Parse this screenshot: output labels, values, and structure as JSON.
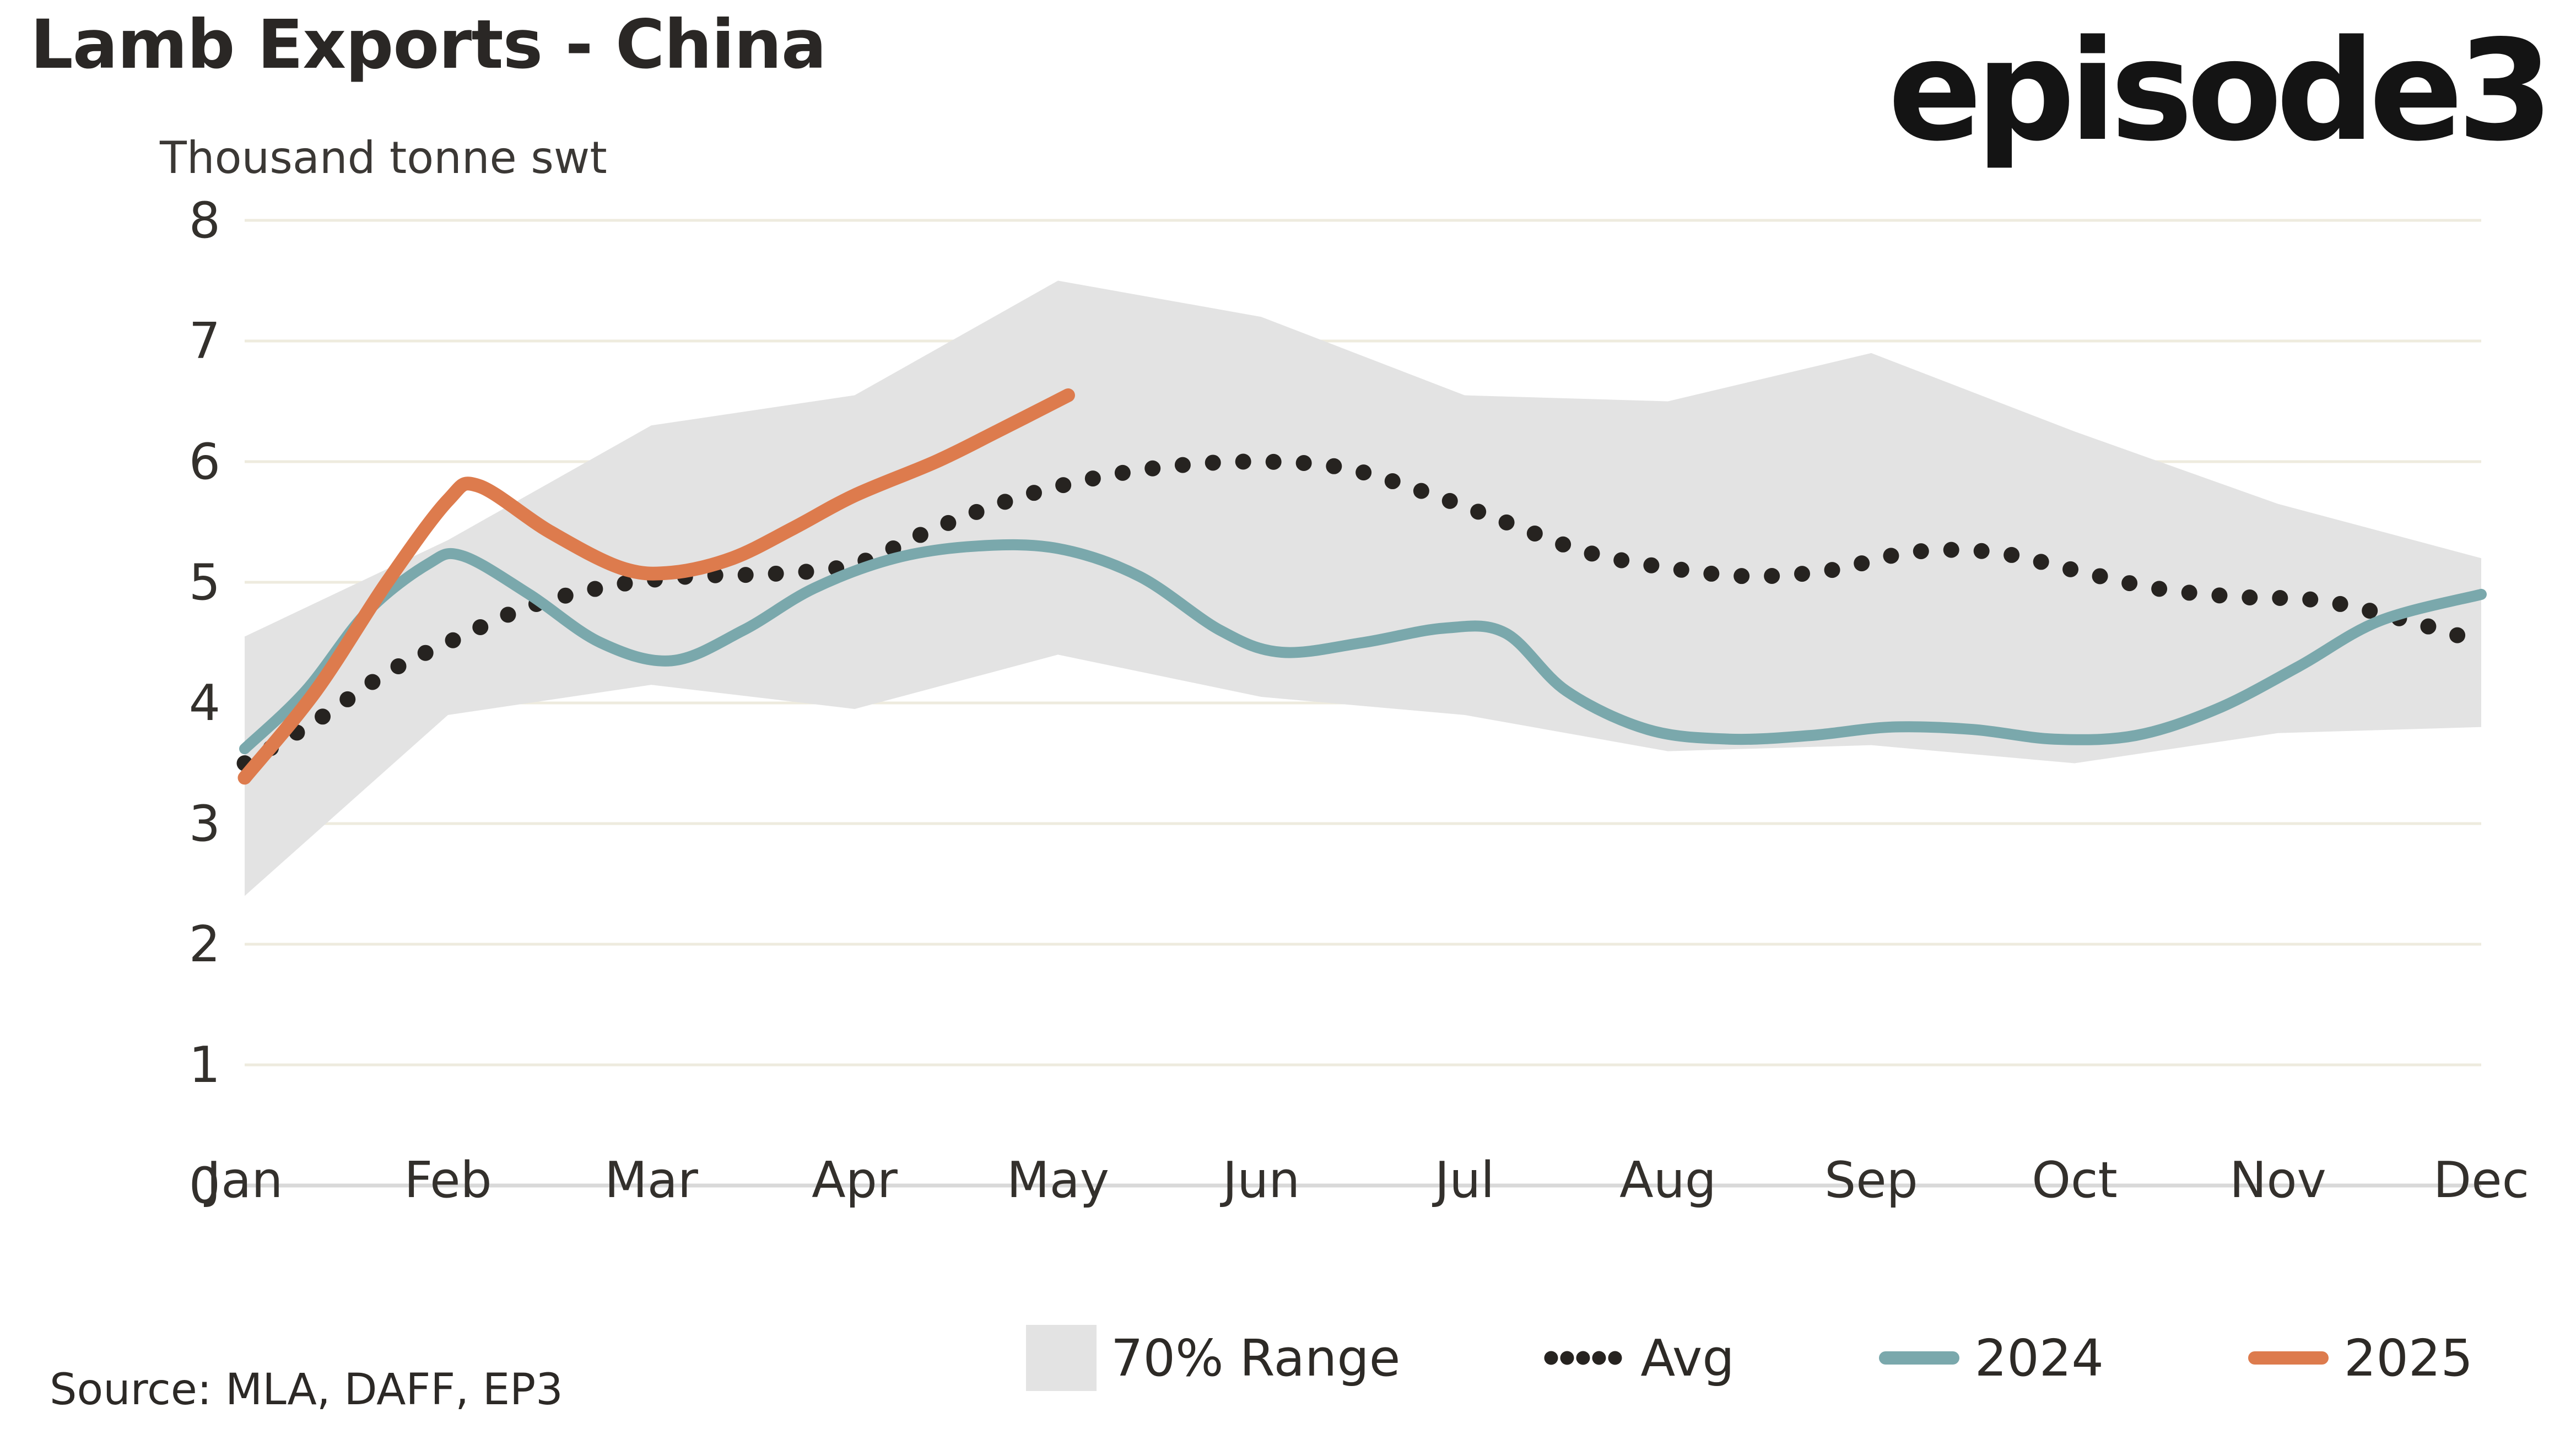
{
  "header": {
    "title": "Lamb Exports - China",
    "subtitle": "Thousand tonne swt",
    "logo_text": "episode3"
  },
  "source_note": "Source: MLA, DAFF, EP3",
  "colors": {
    "band": "#e3e3e3",
    "avg": "#262320",
    "y2024": "#7aa8ac",
    "y2025": "#dd7b4d",
    "gridline": "#eeebde",
    "zero_axis": "#d9d9d9",
    "text": "#33302c"
  },
  "legend": {
    "items": [
      {
        "label": "70% Range",
        "marker": "band-swatch"
      },
      {
        "label": "Avg",
        "marker": "dotted-line-swatch"
      },
      {
        "label": "2024",
        "marker": "teal-line-swatch"
      },
      {
        "label": "2025",
        "marker": "orange-line-swatch"
      }
    ]
  },
  "chart_data": {
    "type": "line",
    "title": "Lamb Exports - China",
    "ylabel": "Thousand tonne swt",
    "xlabel": "",
    "ylim": [
      0,
      8
    ],
    "y_ticks": [
      0,
      1,
      2,
      3,
      4,
      5,
      6,
      7,
      8
    ],
    "categories": [
      "Jan",
      "Feb",
      "Mar",
      "Apr",
      "May",
      "Jun",
      "Jul",
      "Aug",
      "Sep",
      "Oct",
      "Nov",
      "Dec"
    ],
    "grid": "horizontal",
    "legend_position": "bottom",
    "band": {
      "name": "70% Range",
      "x": [
        0,
        1,
        2,
        3,
        4,
        5,
        6,
        7,
        8,
        9,
        10,
        11
      ],
      "lower": [
        2.4,
        3.9,
        4.15,
        3.95,
        4.4,
        4.05,
        3.9,
        3.6,
        3.65,
        3.5,
        3.75,
        3.8
      ],
      "upper": [
        4.55,
        5.35,
        6.3,
        6.55,
        7.5,
        7.2,
        6.55,
        6.5,
        6.9,
        6.25,
        5.65,
        5.2
      ]
    },
    "series": [
      {
        "name": "Avg",
        "style": "dotted",
        "color": "#262320",
        "x": [
          0,
          0.35,
          0.7,
          1.0,
          1.4,
          1.8,
          2.2,
          2.6,
          3.0,
          3.4,
          3.8,
          4.2,
          4.6,
          5.0,
          5.4,
          5.8,
          6.2,
          6.6,
          7.0,
          7.4,
          7.8,
          8.2,
          8.6,
          9.0,
          9.4,
          9.8,
          10.2,
          10.6,
          11.0
        ],
        "values": [
          3.5,
          3.85,
          4.25,
          4.5,
          4.8,
          4.97,
          5.05,
          5.07,
          5.15,
          5.45,
          5.7,
          5.87,
          5.97,
          6.0,
          5.95,
          5.75,
          5.5,
          5.25,
          5.12,
          5.05,
          5.1,
          5.25,
          5.25,
          5.1,
          4.95,
          4.88,
          4.85,
          4.7,
          4.5
        ]
      },
      {
        "name": "2024",
        "style": "solid",
        "color": "#7aa8ac",
        "x": [
          0,
          0.3,
          0.6,
          0.9,
          1.07,
          1.4,
          1.75,
          2.1,
          2.45,
          2.8,
          3.2,
          3.6,
          4.0,
          4.4,
          4.8,
          5.1,
          5.5,
          5.9,
          6.2,
          6.5,
          6.9,
          7.3,
          7.7,
          8.1,
          8.5,
          8.9,
          9.3,
          9.7,
          10.1,
          10.5,
          11.0
        ],
        "values": [
          3.62,
          4.1,
          4.75,
          5.15,
          5.22,
          4.9,
          4.5,
          4.35,
          4.6,
          4.95,
          5.2,
          5.3,
          5.28,
          5.05,
          4.6,
          4.42,
          4.5,
          4.62,
          4.58,
          4.1,
          3.78,
          3.7,
          3.73,
          3.8,
          3.78,
          3.7,
          3.73,
          3.95,
          4.3,
          4.68,
          4.9
        ]
      },
      {
        "name": "2025",
        "style": "solid",
        "color": "#dd7b4d",
        "x": [
          0,
          0.35,
          0.7,
          1.0,
          1.15,
          1.5,
          1.85,
          2.1,
          2.4,
          2.7,
          3.0,
          3.4,
          3.7,
          4.05
        ],
        "values": [
          3.38,
          4.1,
          5.0,
          5.68,
          5.8,
          5.42,
          5.12,
          5.08,
          5.2,
          5.45,
          5.72,
          6.0,
          6.25,
          6.55
        ]
      }
    ]
  }
}
